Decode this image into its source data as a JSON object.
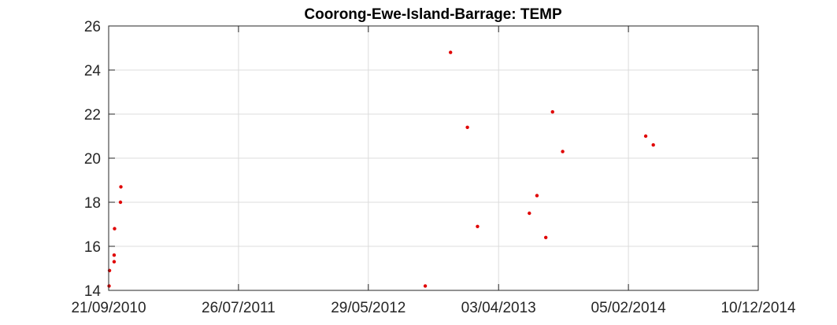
{
  "chart_data": {
    "type": "scatter",
    "title": "Coorong-Ewe-Island-Barrage: TEMP",
    "xlabel": "",
    "ylabel": "",
    "x_axis_type": "date",
    "xlim": [
      "2010-09-21",
      "2014-12-10"
    ],
    "ylim": [
      14,
      26
    ],
    "x_ticks": [
      "2010-09-21",
      "2011-07-26",
      "2012-05-29",
      "2013-04-03",
      "2014-02-05",
      "2014-12-10"
    ],
    "x_tick_labels": [
      "21/09/2010",
      "26/07/2011",
      "29/05/2012",
      "03/04/2013",
      "05/02/2014",
      "10/12/2014"
    ],
    "y_ticks": [
      14,
      16,
      18,
      20,
      22,
      24,
      26
    ],
    "y_tick_labels": [
      "14",
      "16",
      "18",
      "20",
      "22",
      "24",
      "26"
    ],
    "grid": true,
    "box": true,
    "colors": {
      "marker": "#e00000",
      "grid": "#dcdcdc",
      "axis": "#262626"
    },
    "series": [
      {
        "marker": "dot",
        "points": [
          {
            "x": "2010-09-22",
            "y": 14.2
          },
          {
            "x": "2010-09-23",
            "y": 14.9
          },
          {
            "x": "2010-10-04",
            "y": 15.3
          },
          {
            "x": "2010-10-04",
            "y": 15.6
          },
          {
            "x": "2010-10-05",
            "y": 16.8
          },
          {
            "x": "2010-10-19",
            "y": 18.0
          },
          {
            "x": "2010-10-20",
            "y": 18.7
          },
          {
            "x": "2012-10-11",
            "y": 14.2
          },
          {
            "x": "2012-12-10",
            "y": 24.8
          },
          {
            "x": "2013-01-19",
            "y": 21.4
          },
          {
            "x": "2013-02-12",
            "y": 16.9
          },
          {
            "x": "2013-06-15",
            "y": 17.5
          },
          {
            "x": "2013-07-03",
            "y": 18.3
          },
          {
            "x": "2013-07-24",
            "y": 16.4
          },
          {
            "x": "2013-08-09",
            "y": 22.1
          },
          {
            "x": "2013-09-02",
            "y": 20.3
          },
          {
            "x": "2014-03-18",
            "y": 21.0
          },
          {
            "x": "2014-04-05",
            "y": 20.6
          }
        ]
      }
    ]
  }
}
